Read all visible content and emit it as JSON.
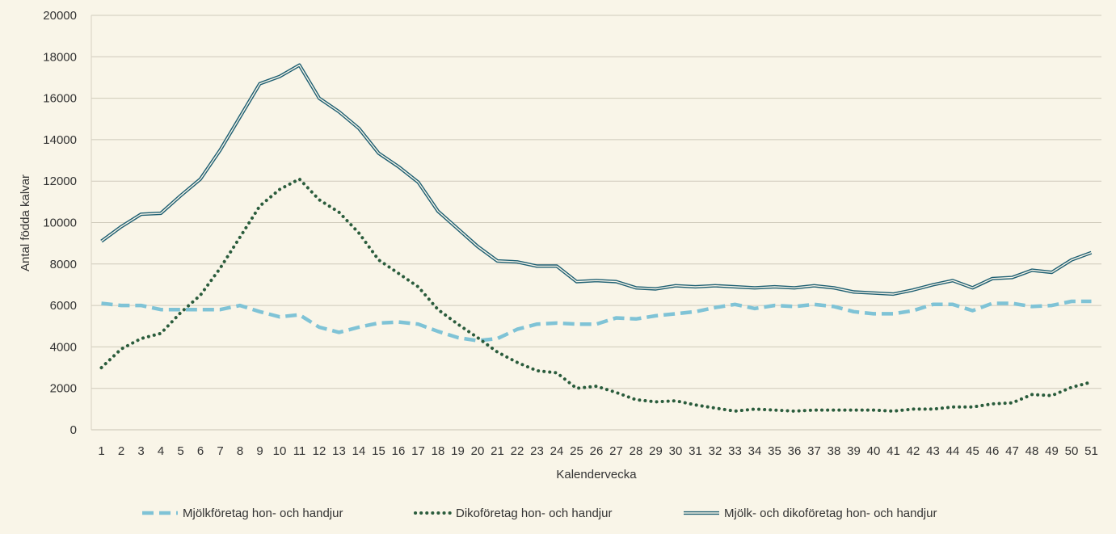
{
  "chart_data": {
    "type": "line",
    "title": "",
    "xlabel": "Kalendervecka",
    "ylabel": "Antal födda kalvar",
    "ylim": [
      0,
      20000
    ],
    "yticks": [
      0,
      2000,
      4000,
      6000,
      8000,
      10000,
      12000,
      14000,
      16000,
      18000,
      20000
    ],
    "grid": "horizontal",
    "legend_position": "bottom",
    "categories": [
      "1",
      "2",
      "3",
      "4",
      "5",
      "6",
      "7",
      "8",
      "9",
      "10",
      "11",
      "12",
      "13",
      "14",
      "15",
      "16",
      "17",
      "18",
      "19",
      "20",
      "21",
      "22",
      "23",
      "24",
      "25",
      "26",
      "27",
      "28",
      "29",
      "30",
      "31",
      "32",
      "33",
      "34",
      "35",
      "36",
      "37",
      "38",
      "39",
      "40",
      "41",
      "42",
      "43",
      "44",
      "45",
      "46",
      "47",
      "48",
      "49",
      "50",
      "51"
    ],
    "series": [
      {
        "name": "Mjölkföretag hon- och handjur",
        "style": "dashed",
        "color": "#7fc3d6",
        "values": [
          6100,
          6000,
          6000,
          5800,
          5800,
          5800,
          5800,
          6000,
          5700,
          5450,
          5550,
          4950,
          4700,
          4950,
          5150,
          5200,
          5100,
          4750,
          4450,
          4300,
          4400,
          4850,
          5100,
          5150,
          5100,
          5100,
          5400,
          5350,
          5500,
          5600,
          5700,
          5900,
          6050,
          5850,
          6000,
          5950,
          6050,
          5950,
          5700,
          5600,
          5600,
          5750,
          6050,
          6050,
          5750,
          6100,
          6100,
          5950,
          6000,
          6200,
          6200
        ]
      },
      {
        "name": "Dikoföretag hon- och handjur",
        "style": "dotted",
        "color": "#2a5c3c",
        "values": [
          3000,
          3900,
          4400,
          4650,
          5650,
          6500,
          7800,
          9300,
          10800,
          11600,
          12100,
          11100,
          10500,
          9500,
          8200,
          7550,
          6900,
          5800,
          5100,
          4450,
          3750,
          3250,
          2850,
          2750,
          2000,
          2100,
          1800,
          1450,
          1350,
          1400,
          1200,
          1050,
          900,
          1000,
          950,
          900,
          950,
          950,
          950,
          950,
          900,
          1000,
          1000,
          1100,
          1100,
          1250,
          1300,
          1700,
          1650,
          2050,
          2300
        ]
      },
      {
        "name": "Mjölk- och dikoföretag hon- och handjur",
        "style": "double",
        "color": "#1e5f72",
        "values": [
          9100,
          9800,
          10400,
          10450,
          11300,
          12100,
          13500,
          15100,
          16700,
          17050,
          17600,
          16000,
          15350,
          14550,
          13350,
          12700,
          11950,
          10550,
          9700,
          8850,
          8150,
          8100,
          7900,
          7900,
          7150,
          7200,
          7150,
          6850,
          6800,
          6950,
          6900,
          6950,
          6900,
          6850,
          6900,
          6850,
          6950,
          6850,
          6650,
          6600,
          6550,
          6750,
          7000,
          7200,
          6850,
          7300,
          7350,
          7700,
          7600,
          8200,
          8550
        ]
      }
    ]
  }
}
